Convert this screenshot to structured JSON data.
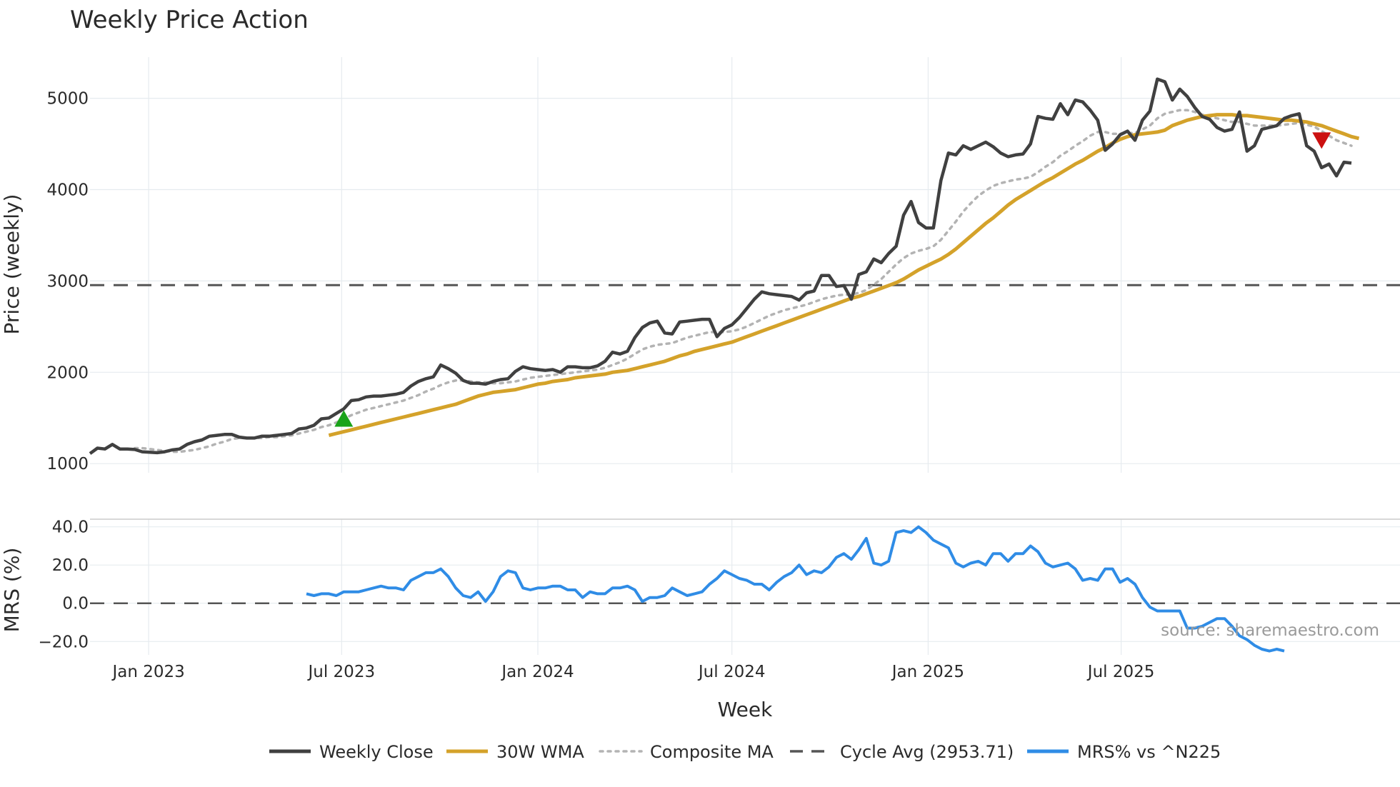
{
  "chart_data": [
    {
      "type": "line",
      "title": "Weekly Price Action",
      "xlabel": "",
      "ylabel": "Price (weekly)",
      "ylim": [
        900,
        5450
      ],
      "yticks": [
        1000,
        2000,
        3000,
        4000,
        5000
      ],
      "x_start": "2022-11-07",
      "x_step_days": 7,
      "grid": true,
      "close": [
        1110,
        1170,
        1160,
        1210,
        1160,
        1160,
        1155,
        1130,
        1125,
        1120,
        1130,
        1150,
        1160,
        1210,
        1240,
        1260,
        1300,
        1310,
        1320,
        1320,
        1290,
        1280,
        1280,
        1300,
        1300,
        1310,
        1320,
        1330,
        1380,
        1390,
        1420,
        1490,
        1500,
        1550,
        1600,
        1690,
        1700,
        1730,
        1740,
        1740,
        1750,
        1760,
        1780,
        1850,
        1900,
        1930,
        1950,
        2080,
        2040,
        1990,
        1910,
        1880,
        1880,
        1870,
        1900,
        1920,
        1930,
        2010,
        2060,
        2040,
        2030,
        2020,
        2030,
        2000,
        2060,
        2060,
        2050,
        2050,
        2070,
        2120,
        2220,
        2200,
        2230,
        2380,
        2490,
        2540,
        2560,
        2430,
        2420,
        2550,
        2560,
        2570,
        2580,
        2580,
        2390,
        2480,
        2520,
        2600,
        2700,
        2800,
        2880,
        2860,
        2850,
        2840,
        2830,
        2790,
        2870,
        2890,
        3060,
        3060,
        2940,
        2950,
        2800,
        3070,
        3100,
        3240,
        3200,
        3300,
        3380,
        3720,
        3870,
        3640,
        3580,
        3580,
        4100,
        4400,
        4380,
        4480,
        4440,
        4480,
        4520,
        4470,
        4400,
        4360,
        4380,
        4390,
        4500,
        4800,
        4780,
        4770,
        4940,
        4820,
        4980,
        4960,
        4870,
        4760,
        4430,
        4500,
        4600,
        4640,
        4540,
        4760,
        4860,
        5210,
        5180,
        4980,
        5100,
        5020,
        4900,
        4800,
        4770,
        4680,
        4640,
        4660,
        4850,
        4420,
        4480,
        4660,
        4680,
        4700,
        4780,
        4810,
        4830,
        4480,
        4420,
        4240,
        4280,
        4150,
        4300,
        4290
      ],
      "wma_30": [
        null,
        null,
        null,
        null,
        null,
        null,
        null,
        null,
        null,
        null,
        null,
        null,
        null,
        null,
        null,
        null,
        null,
        null,
        null,
        null,
        null,
        null,
        null,
        null,
        null,
        null,
        null,
        null,
        null,
        null,
        null,
        null,
        1310,
        1330,
        1350,
        1370,
        1390,
        1410,
        1430,
        1450,
        1470,
        1490,
        1510,
        1530,
        1550,
        1570,
        1590,
        1610,
        1630,
        1650,
        1680,
        1710,
        1740,
        1760,
        1780,
        1790,
        1800,
        1810,
        1830,
        1850,
        1870,
        1880,
        1900,
        1910,
        1920,
        1940,
        1950,
        1960,
        1970,
        1980,
        2000,
        2010,
        2020,
        2040,
        2060,
        2080,
        2100,
        2120,
        2150,
        2180,
        2200,
        2230,
        2250,
        2270,
        2290,
        2310,
        2330,
        2360,
        2390,
        2420,
        2450,
        2480,
        2510,
        2540,
        2570,
        2600,
        2630,
        2660,
        2690,
        2720,
        2750,
        2780,
        2810,
        2830,
        2860,
        2890,
        2920,
        2950,
        2980,
        3020,
        3070,
        3120,
        3160,
        3200,
        3240,
        3290,
        3350,
        3420,
        3490,
        3560,
        3630,
        3690,
        3760,
        3830,
        3890,
        3940,
        3990,
        4040,
        4090,
        4130,
        4180,
        4230,
        4280,
        4320,
        4370,
        4420,
        4460,
        4510,
        4550,
        4580,
        4600,
        4610,
        4620,
        4630,
        4650,
        4700,
        4730,
        4760,
        4780,
        4800,
        4810,
        4820,
        4820,
        4820,
        4810,
        4810,
        4800,
        4790,
        4780,
        4770,
        4760,
        4760,
        4750,
        4740,
        4720,
        4700,
        4670,
        4640,
        4610,
        4580,
        4560
      ],
      "composite_ma": [
        null,
        null,
        null,
        null,
        null,
        null,
        1170,
        1170,
        1160,
        1150,
        1140,
        1130,
        1130,
        1140,
        1150,
        1170,
        1190,
        1220,
        1240,
        1270,
        1280,
        1280,
        1280,
        1280,
        1290,
        1290,
        1300,
        1310,
        1330,
        1350,
        1370,
        1400,
        1420,
        1450,
        1490,
        1530,
        1560,
        1590,
        1610,
        1630,
        1650,
        1670,
        1690,
        1720,
        1750,
        1790,
        1820,
        1860,
        1890,
        1910,
        1910,
        1900,
        1890,
        1890,
        1880,
        1880,
        1890,
        1900,
        1920,
        1940,
        1950,
        1960,
        1970,
        1980,
        1990,
        2000,
        2010,
        2020,
        2030,
        2050,
        2080,
        2110,
        2150,
        2200,
        2250,
        2280,
        2300,
        2310,
        2320,
        2350,
        2380,
        2400,
        2420,
        2440,
        2440,
        2440,
        2450,
        2470,
        2500,
        2540,
        2580,
        2620,
        2650,
        2680,
        2700,
        2720,
        2740,
        2770,
        2800,
        2820,
        2840,
        2850,
        2850,
        2870,
        2900,
        2960,
        3020,
        3100,
        3180,
        3250,
        3300,
        3330,
        3350,
        3380,
        3450,
        3550,
        3650,
        3760,
        3850,
        3930,
        3990,
        4040,
        4070,
        4090,
        4110,
        4120,
        4140,
        4190,
        4250,
        4300,
        4370,
        4420,
        4480,
        4530,
        4590,
        4630,
        4630,
        4610,
        4610,
        4620,
        4620,
        4660,
        4700,
        4780,
        4830,
        4850,
        4870,
        4870,
        4850,
        4820,
        4800,
        4780,
        4760,
        4740,
        4740,
        4720,
        4700,
        4700,
        4700,
        4700,
        4710,
        4720,
        4730,
        4710,
        4690,
        4640,
        4590,
        4540,
        4510,
        4480
      ],
      "cycle_avg": 2953.71,
      "signals": [
        {
          "type": "buy",
          "week_index": 34,
          "price": 1490
        },
        {
          "type": "sell",
          "week_index": 165,
          "price": 4540
        }
      ]
    },
    {
      "type": "line",
      "ylabel": "MRS (%)",
      "xlabel": "Week",
      "ylim": [
        -27,
        44
      ],
      "yticks": [
        -20,
        0,
        20,
        40
      ],
      "ytick_labels": [
        "−20.0",
        "0.0",
        "20.0",
        "40.0"
      ],
      "xtick_labels": [
        "Jan 2023",
        "Jul 2023",
        "Jan 2024",
        "Jul 2024",
        "Jan 2025",
        "Jul 2025"
      ],
      "xtick_dates": [
        "2023-01-01",
        "2023-07-01",
        "2024-01-01",
        "2024-07-01",
        "2025-01-01",
        "2025-07-01"
      ],
      "baseline": 0,
      "mrs_start_index": 29,
      "mrs": [
        5,
        4,
        5,
        5,
        4,
        6,
        6,
        6,
        7,
        8,
        9,
        8,
        8,
        7,
        12,
        14,
        16,
        16,
        18,
        14,
        8,
        4,
        3,
        6,
        1,
        6,
        14,
        17,
        16,
        8,
        7,
        8,
        8,
        9,
        9,
        7,
        7,
        3,
        6,
        5,
        5,
        8,
        8,
        9,
        7,
        1,
        3,
        3,
        4,
        8,
        6,
        4,
        5,
        6,
        10,
        13,
        17,
        15,
        13,
        12,
        10,
        10,
        7,
        11,
        14,
        16,
        20,
        15,
        17,
        16,
        19,
        24,
        26,
        23,
        28,
        34,
        21,
        20,
        22,
        37,
        38,
        37,
        40,
        37,
        33,
        31,
        29,
        21,
        19,
        21,
        22,
        20,
        26,
        26,
        22,
        26,
        26,
        30,
        27,
        21,
        19,
        20,
        21,
        18,
        12,
        13,
        12,
        18,
        18,
        11,
        13,
        10,
        3,
        -2,
        -4,
        -4,
        -4,
        -4,
        -13,
        -13,
        -12,
        -10,
        -8,
        -8,
        -12,
        -17,
        -19,
        -22,
        -24,
        -25,
        -24,
        -25
      ],
      "source": "source: sharemaestro.com"
    }
  ],
  "legend": [
    {
      "label": "Weekly Close",
      "color": "#404040",
      "style": "solid"
    },
    {
      "label": "30W WMA",
      "color": "#d4a22a",
      "style": "solid"
    },
    {
      "label": "Composite MA",
      "color": "#b3b3b3",
      "style": "dotted"
    },
    {
      "label": "Cycle Avg (2953.71)",
      "color": "#555555",
      "style": "dashed"
    },
    {
      "label": "MRS% vs ^N225",
      "color": "#2f8ce6",
      "style": "solid"
    }
  ],
  "colors": {
    "close": "#404040",
    "wma": "#d4a22a",
    "composite": "#b3b3b3",
    "cycle": "#555555",
    "mrs": "#2f8ce6",
    "buy": "#1aa31a",
    "sell": "#cc1111",
    "grid": "#e6ebef"
  }
}
